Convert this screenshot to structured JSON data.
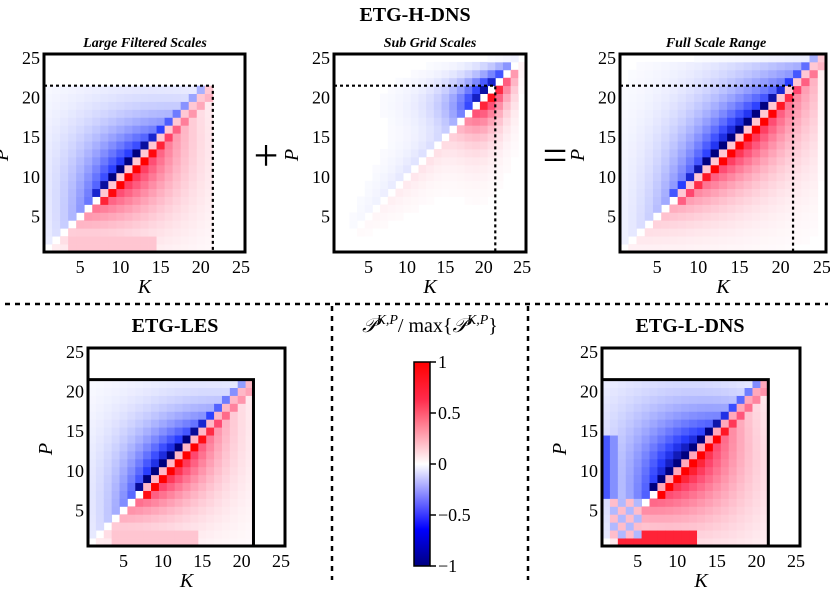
{
  "figure": {
    "main_title": "ETG-H-DNS",
    "operators": {
      "plus": "+",
      "equals": "="
    },
    "colorbar": {
      "label_symbol": "𝒫",
      "label_superscript": "K,P",
      "label_middle": "/ max{",
      "label_end": "}",
      "ticks": [
        "1",
        "0.5",
        "0",
        "−0.5",
        "−1"
      ],
      "colors": {
        "low": "#00007f",
        "mid": "#ffffff",
        "high": "#ff0000"
      }
    }
  },
  "chart_data": [
    {
      "id": "large-filtered",
      "type": "heatmap",
      "title": "Large Filtered Scales",
      "xlabel": "K",
      "ylabel": "P",
      "xticks": [
        "5",
        "10",
        "15",
        "20",
        "25"
      ],
      "yticks": [
        "5",
        "10",
        "15",
        "20",
        "25"
      ],
      "xlim": [
        0.5,
        25.5
      ],
      "ylim": [
        0.5,
        25.5
      ],
      "grid_n": 21,
      "cutoff": 21,
      "cutoff_style": "dotted",
      "pattern": {
        "neg": 0.85,
        "pos": 0.9,
        "spread": 5.5,
        "diag": 1.0,
        "stripe": 0.35,
        "skew": 0.0,
        "window": "large"
      }
    },
    {
      "id": "sub-grid",
      "type": "heatmap",
      "title": "Sub Grid Scales",
      "xlabel": "K",
      "ylabel": "P",
      "xticks": [
        "5",
        "10",
        "15",
        "20",
        "25"
      ],
      "yticks": [
        "5",
        "10",
        "15",
        "20",
        "25"
      ],
      "xlim": [
        0.5,
        25.5
      ],
      "ylim": [
        0.5,
        25.5
      ],
      "grid_n": 25,
      "cutoff": 21,
      "cutoff_style": "dotted",
      "pattern": {
        "neg": 0.9,
        "pos": 0.9,
        "spread": 3.0,
        "diag": 1.0,
        "stripe": 0.0,
        "skew": 0.0,
        "window": "small"
      }
    },
    {
      "id": "full-scale",
      "type": "heatmap",
      "title": "Full Scale Range",
      "xlabel": "K",
      "ylabel": "P",
      "xticks": [
        "5",
        "10",
        "15",
        "20",
        "25"
      ],
      "yticks": [
        "5",
        "10",
        "15",
        "20",
        "25"
      ],
      "xlim": [
        0.5,
        25.5
      ],
      "ylim": [
        0.5,
        25.5
      ],
      "grid_n": 25,
      "cutoff": 21,
      "cutoff_style": "dotted",
      "pattern": {
        "neg": 0.95,
        "pos": 0.95,
        "spread": 5.0,
        "diag": 1.0,
        "stripe": 0.35,
        "skew": 0.0,
        "window": "full"
      }
    },
    {
      "id": "etg-les",
      "type": "heatmap",
      "title": "ETG-LES",
      "xlabel": "K",
      "ylabel": "P",
      "xticks": [
        "5",
        "10",
        "15",
        "20",
        "25"
      ],
      "yticks": [
        "5",
        "10",
        "15",
        "20",
        "25"
      ],
      "xlim": [
        0.5,
        25.5
      ],
      "ylim": [
        0.5,
        25.5
      ],
      "grid_n": 21,
      "cutoff": 21,
      "cutoff_style": "solid",
      "pattern": {
        "neg": 0.95,
        "pos": 0.95,
        "spread": 5.0,
        "diag": 1.0,
        "stripe": 0.45,
        "skew": 0.0,
        "window": "large"
      }
    },
    {
      "id": "etg-l-dns",
      "type": "heatmap",
      "title": "ETG-L-DNS",
      "xlabel": "K",
      "ylabel": "P",
      "xticks": [
        "5",
        "10",
        "15",
        "20",
        "25"
      ],
      "yticks": [
        "5",
        "10",
        "15",
        "20",
        "25"
      ],
      "xlim": [
        0.5,
        25.5
      ],
      "ylim": [
        0.5,
        25.5
      ],
      "grid_n": 21,
      "cutoff": 21,
      "cutoff_style": "solid",
      "pattern": {
        "neg": 1.0,
        "pos": 1.0,
        "spread": 7.0,
        "diag": 1.0,
        "stripe": 0.55,
        "skew": 0.0,
        "window": "large"
      }
    }
  ]
}
